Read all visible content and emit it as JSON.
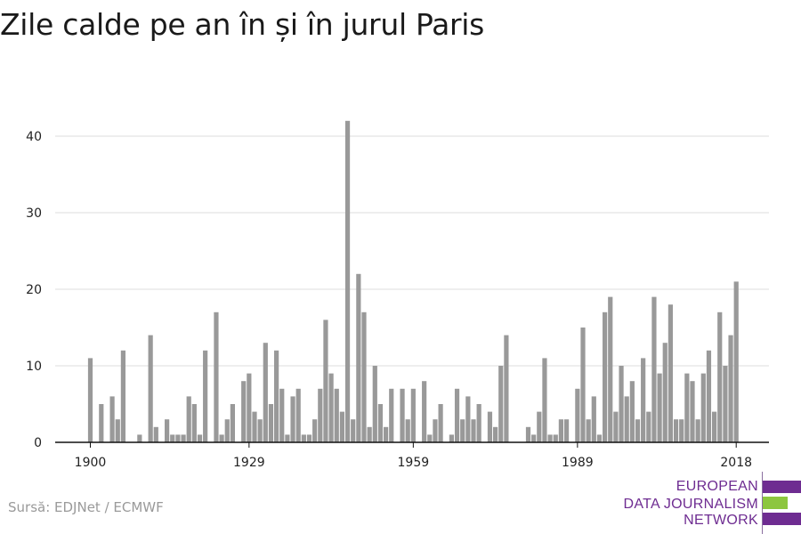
{
  "title": "Zile calde pe an în și în jurul Paris",
  "source": "Sursă: EDJNet / ECMWF",
  "logo": {
    "line1": "EUROPEAN",
    "line2": "DATA JOURNALISM",
    "line3": "NETWORK",
    "colors": {
      "purple": "#6e2c91",
      "green": "#8dc63f"
    }
  },
  "chart_data": {
    "type": "bar",
    "title": "Zile calde pe an în și în jurul Paris",
    "xlabel": "",
    "ylabel": "",
    "bar_color": "#999999",
    "grid": true,
    "ylim": [
      0,
      42
    ],
    "yticks": [
      0,
      10,
      20,
      30,
      40
    ],
    "xticks": [
      1900,
      1929,
      1959,
      1989,
      2018
    ],
    "x": [
      1894,
      1895,
      1896,
      1897,
      1898,
      1899,
      1900,
      1901,
      1902,
      1903,
      1904,
      1905,
      1906,
      1907,
      1908,
      1909,
      1910,
      1911,
      1912,
      1913,
      1914,
      1915,
      1916,
      1917,
      1918,
      1919,
      1920,
      1921,
      1922,
      1923,
      1924,
      1925,
      1926,
      1927,
      1928,
      1929,
      1930,
      1931,
      1932,
      1933,
      1934,
      1935,
      1936,
      1937,
      1938,
      1939,
      1940,
      1941,
      1942,
      1943,
      1944,
      1945,
      1946,
      1947,
      1948,
      1949,
      1950,
      1951,
      1952,
      1953,
      1954,
      1955,
      1956,
      1957,
      1958,
      1959,
      1960,
      1961,
      1962,
      1963,
      1964,
      1965,
      1966,
      1967,
      1968,
      1969,
      1970,
      1971,
      1972,
      1973,
      1974,
      1975,
      1976,
      1977,
      1978,
      1979,
      1980,
      1981,
      1982,
      1983,
      1984,
      1985,
      1986,
      1987,
      1988,
      1989,
      1990,
      1991,
      1992,
      1993,
      1994,
      1995,
      1996,
      1997,
      1998,
      1999,
      2000,
      2001,
      2002,
      2003,
      2004,
      2005,
      2006,
      2007,
      2008,
      2009,
      2010,
      2011,
      2012,
      2013,
      2014,
      2015,
      2016,
      2017,
      2018
    ],
    "values": [
      0,
      0,
      0,
      0,
      0,
      0,
      11,
      0,
      5,
      0,
      6,
      3,
      12,
      0,
      0,
      1,
      0,
      14,
      2,
      0,
      3,
      1,
      1,
      1,
      6,
      5,
      1,
      12,
      0,
      17,
      1,
      3,
      5,
      0,
      8,
      9,
      4,
      3,
      13,
      5,
      12,
      7,
      1,
      6,
      7,
      1,
      1,
      3,
      7,
      16,
      9,
      7,
      4,
      42,
      3,
      22,
      17,
      2,
      10,
      5,
      2,
      7,
      0,
      7,
      3,
      7,
      0,
      8,
      1,
      3,
      5,
      0,
      1,
      7,
      3,
      6,
      3,
      5,
      0,
      4,
      2,
      10,
      14,
      0,
      0,
      0,
      2,
      1,
      4,
      11,
      1,
      1,
      3,
      3,
      0,
      7,
      15,
      3,
      6,
      1,
      17,
      19,
      4,
      10,
      6,
      8,
      3,
      11,
      4,
      19,
      9,
      13,
      18,
      3,
      3,
      9,
      8,
      3,
      9,
      12,
      4,
      17,
      10,
      14,
      21
    ]
  }
}
